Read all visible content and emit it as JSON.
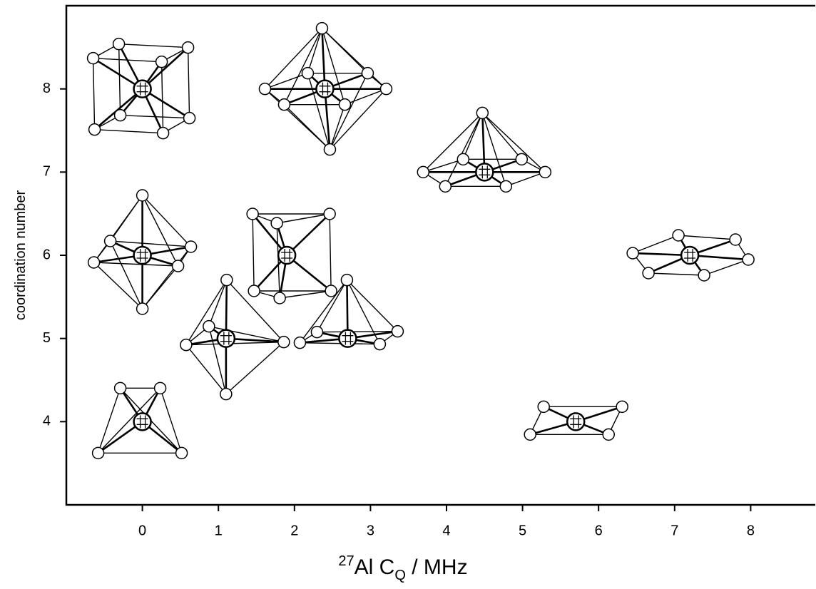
{
  "chart_data": {
    "type": "scatter",
    "xlabel": [
      "27",
      "Al C",
      "Q",
      " / MHz"
    ],
    "ylabel": "coordination number",
    "x": [
      0,
      2.4,
      4.5,
      0,
      1.9,
      7.2,
      1.1,
      2.7,
      0,
      5.7
    ],
    "values": [
      8,
      8,
      7,
      6,
      6,
      6,
      5,
      5,
      4,
      4
    ],
    "markers": [
      "cube",
      "hexagonal-bipyramid",
      "pentagonal-bipyramid",
      "octahedron",
      "trigonal-prism",
      "hexagon",
      "trigonal-bipyramid",
      "square-pyramid",
      "tetrahedron",
      "square-planar"
    ],
    "color": "#000000",
    "xlim": [
      -1,
      8.85
    ],
    "ylim": [
      3,
      9
    ],
    "xticks": [
      0,
      1,
      2,
      3,
      4,
      5,
      6,
      7,
      8
    ],
    "yticks": [
      4,
      5,
      6,
      7,
      8
    ]
  }
}
